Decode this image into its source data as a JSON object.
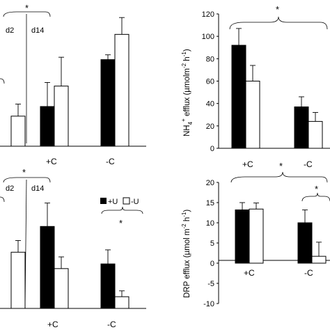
{
  "legend": {
    "filled": "+U",
    "open": "-U"
  },
  "colors": {
    "filled": "#000000",
    "open": "#ffffff",
    "stroke": "#000000"
  },
  "chart_data": [
    {
      "id": "top-left",
      "type": "bar",
      "categories": [
        "",
        "+C",
        "-C"
      ],
      "series": [
        {
          "name": "",
          "values": [
            null,
            0.33,
            0.72
          ],
          "errors": [
            null,
            0.2,
            0.04
          ]
        },
        {
          "name": "",
          "values": [
            0.25,
            0.5,
            0.93
          ],
          "errors": [
            0.1,
            0.24,
            0.14
          ]
        }
      ],
      "ylim": [
        0,
        1.1
      ],
      "annotations": {
        "day_left": "d2",
        "day_right": "d14",
        "star": "*"
      }
    },
    {
      "id": "top-right",
      "type": "bar",
      "categories": [
        "+C",
        "-C"
      ],
      "series": [
        {
          "name": "",
          "values": [
            92,
            37
          ],
          "errors": [
            15,
            9
          ]
        },
        {
          "name": "",
          "values": [
            60,
            24
          ],
          "errors": [
            14,
            8
          ]
        }
      ],
      "ylim": [
        0,
        120
      ],
      "yticks": [
        "0",
        "20",
        "40",
        "60",
        "80",
        "100",
        "120"
      ],
      "ylabel": {
        "main": "NH",
        "sub": "4",
        "sup": "+",
        "rest": " efflux (µmolm",
        "sup2": "-2",
        "mid": " h",
        "sup3": "-1",
        "end": ")"
      },
      "annotations": {
        "star": "*"
      }
    },
    {
      "id": "bottom-left",
      "type": "bar",
      "categories": [
        "",
        "+C",
        "-C"
      ],
      "series": [
        {
          "name": "+U",
          "values": [
            null,
            0.7,
            0.38
          ],
          "errors": [
            null,
            0.2,
            0.12
          ]
        },
        {
          "name": "-U",
          "values": [
            0.48,
            0.34,
            0.1
          ],
          "errors": [
            0.1,
            0.1,
            0.05
          ]
        }
      ],
      "ylim": [
        0,
        1.1
      ],
      "annotations": {
        "day_left": "d2",
        "day_right": "d14",
        "star": "*",
        "legend_star": "*"
      }
    },
    {
      "id": "bottom-right",
      "type": "bar",
      "categories": [
        "+C",
        "-C"
      ],
      "series": [
        {
          "name": "",
          "values": [
            13.2,
            10.0
          ],
          "errors": [
            1.8,
            3.2
          ]
        },
        {
          "name": "",
          "values": [
            13.4,
            1.7
          ],
          "errors": [
            1.5,
            3.5
          ]
        }
      ],
      "ylim": [
        -10,
        20
      ],
      "yticks": [
        "-10",
        "-5",
        "0",
        "5",
        "10",
        "15",
        "20"
      ],
      "ylabel": {
        "main": "DRP efflux (µmol m",
        "sup": "-2",
        "rest": " h",
        "sup2": "-1",
        "end": ")"
      },
      "annotations": {
        "star_outer": "*",
        "star_inner": "*"
      }
    }
  ]
}
